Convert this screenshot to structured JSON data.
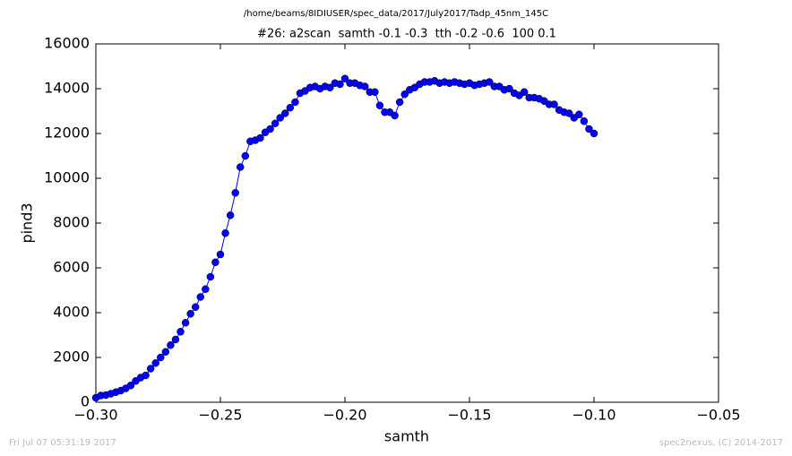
{
  "chart_data": {
    "type": "line",
    "page_title": "/home/beams/8IDIUSER/spec_data/2017/July2017/Tadp_45nm_145C",
    "title": "#26: a2scan  samth -0.1 -0.3  tth -0.2 -0.6  100 0.1",
    "xlabel": "samth",
    "ylabel": "pind3",
    "footer_left": "Fri Jul 07 05:31:19 2017",
    "footer_right": "spec2nexus, (C) 2014-2017",
    "xlim": [
      -0.3,
      -0.05
    ],
    "ylim": [
      0,
      16000
    ],
    "xticks": [
      {
        "value": -0.3,
        "label": "−0.30"
      },
      {
        "value": -0.25,
        "label": "−0.25"
      },
      {
        "value": -0.2,
        "label": "−0.20"
      },
      {
        "value": -0.15,
        "label": "−0.15"
      },
      {
        "value": -0.1,
        "label": "−0.10"
      },
      {
        "value": -0.05,
        "label": "−0.05"
      }
    ],
    "yticks": [
      0,
      2000,
      4000,
      6000,
      8000,
      10000,
      12000,
      14000,
      16000
    ],
    "grid": false,
    "x": [
      -0.3,
      -0.298,
      -0.296,
      -0.294,
      -0.292,
      -0.29,
      -0.288,
      -0.286,
      -0.284,
      -0.282,
      -0.28,
      -0.278,
      -0.276,
      -0.274,
      -0.272,
      -0.27,
      -0.268,
      -0.266,
      -0.264,
      -0.262,
      -0.26,
      -0.258,
      -0.256,
      -0.254,
      -0.252,
      -0.25,
      -0.248,
      -0.246,
      -0.244,
      -0.242,
      -0.24,
      -0.238,
      -0.236,
      -0.234,
      -0.232,
      -0.23,
      -0.228,
      -0.226,
      -0.224,
      -0.222,
      -0.22,
      -0.218,
      -0.216,
      -0.214,
      -0.212,
      -0.21,
      -0.208,
      -0.206,
      -0.204,
      -0.202,
      -0.2,
      -0.198,
      -0.196,
      -0.194,
      -0.192,
      -0.19,
      -0.188,
      -0.186,
      -0.184,
      -0.182,
      -0.18,
      -0.178,
      -0.176,
      -0.174,
      -0.172,
      -0.17,
      -0.168,
      -0.166,
      -0.164,
      -0.162,
      -0.16,
      -0.158,
      -0.156,
      -0.154,
      -0.152,
      -0.15,
      -0.148,
      -0.146,
      -0.144,
      -0.142,
      -0.14,
      -0.138,
      -0.136,
      -0.134,
      -0.132,
      -0.13,
      -0.128,
      -0.126,
      -0.124,
      -0.122,
      -0.12,
      -0.118,
      -0.116,
      -0.114,
      -0.112,
      -0.11,
      -0.108,
      -0.106,
      -0.104,
      -0.102,
      -0.1
    ],
    "series": [
      {
        "color": "#0000ff",
        "values": [
          200,
          300,
          320,
          380,
          450,
          520,
          620,
          750,
          950,
          1100,
          1200,
          1500,
          1750,
          2000,
          2250,
          2550,
          2800,
          3150,
          3550,
          3950,
          4250,
          4700,
          5050,
          5600,
          6250,
          6600,
          7550,
          8350,
          9350,
          10500,
          11000,
          11650,
          11700,
          11800,
          12050,
          12200,
          12450,
          12700,
          12900,
          13150,
          13400,
          13800,
          13900,
          14050,
          14100,
          14000,
          14100,
          14050,
          14250,
          14200,
          14450,
          14250,
          14250,
          14150,
          14100,
          13850,
          13850,
          13250,
          12950,
          12950,
          12800,
          13400,
          13750,
          13950,
          14050,
          14200,
          14300,
          14300,
          14350,
          14250,
          14300,
          14250,
          14300,
          14250,
          14200,
          14250,
          14150,
          14200,
          14250,
          14300,
          14100,
          14100,
          13950,
          14000,
          13800,
          13700,
          13850,
          13600,
          13600,
          13550,
          13450,
          13300,
          13300,
          13050,
          12950,
          12900,
          12700,
          12850,
          12550,
          12200,
          12000
        ]
      }
    ]
  }
}
